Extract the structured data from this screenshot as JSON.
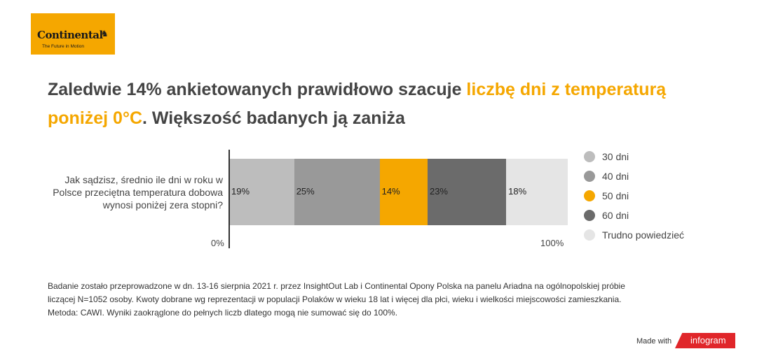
{
  "logo": {
    "name": "Continental",
    "tagline": "The Future in Motion"
  },
  "title": {
    "part1": "Zaledwie 14% ankietowanych prawidłowo szacuje ",
    "highlight1": "liczbę dni z temperaturą poniżej 0°C",
    "part2": ". Większość badanych ją zaniża"
  },
  "chart_data": {
    "type": "bar",
    "orientation": "horizontal-stacked-100",
    "categories": [
      "Jak sądzisz, średnio ile dni w roku w Polsce przeciętna temperatura dobowa wynosi poniżej zera stopni?"
    ],
    "series": [
      {
        "name": "30 dni",
        "values": [
          19
        ],
        "label": "19%",
        "color": "#bdbdbd"
      },
      {
        "name": "40 dni",
        "values": [
          25
        ],
        "label": "25%",
        "color": "#999999"
      },
      {
        "name": "50 dni",
        "values": [
          14
        ],
        "label": "14%",
        "color": "#f5a700"
      },
      {
        "name": "60 dni",
        "values": [
          23
        ],
        "label": "23%",
        "color": "#6b6b6b"
      },
      {
        "name": "Trudno powiedzieć",
        "values": [
          18
        ],
        "label": "18%",
        "color": "#e5e5e5"
      }
    ],
    "xticks": [
      "0%",
      "100%"
    ],
    "xlim": [
      0,
      100
    ],
    "legend": "right",
    "grid": false
  },
  "footnote": [
    "Badanie zostało przeprowadzone w dn. 13-16 sierpnia 2021 r. przez InsightOut Lab i Continental Opony Polska na panelu Ariadna na ogólnopolskiej próbie",
    "liczącej N=1052 osoby. Kwoty dobrane wg reprezentacji w populacji Polaków w wieku 18 lat i więcej dla płci, wieku i wielkości miejscowości zamieszkania.",
    "Metoda: CAWI. Wyniki zaokrąglone do pełnych liczb dlatego mogą nie sumować się do 100%."
  ],
  "badge": {
    "made_with": "Made with",
    "brand": "infogram"
  }
}
